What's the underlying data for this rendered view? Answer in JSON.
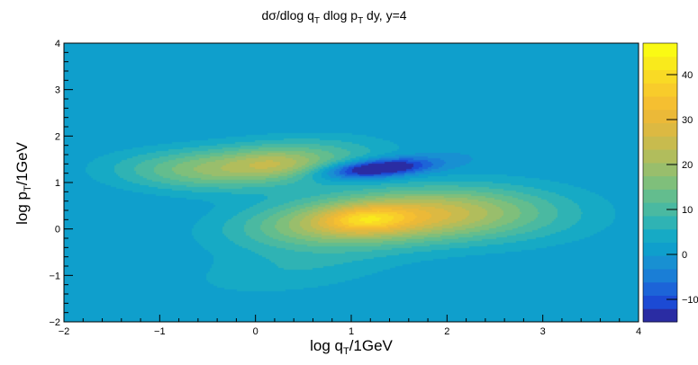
{
  "chart_data": {
    "type": "heatmap",
    "title": {
      "main": "dσ/dlog q",
      "sub1": "T",
      "mid": " dlog p",
      "sub2": "T",
      "tail": " dy,   y=4"
    },
    "xlabel": {
      "main": "log q",
      "sub": "T",
      "tail": "/1GeV"
    },
    "ylabel": {
      "main": "log p",
      "sub": "T",
      "tail": "/1GeV"
    },
    "xlim": [
      -2,
      4
    ],
    "ylim": [
      -2,
      4
    ],
    "x_ticks": [
      -2,
      -1,
      0,
      1,
      2,
      3,
      4
    ],
    "x_tick_labels": [
      "−2",
      "−1",
      "0",
      "1",
      "2",
      "3",
      "4"
    ],
    "y_ticks": [
      -2,
      -1,
      0,
      1,
      2,
      3,
      4
    ],
    "y_tick_labels": [
      "−2",
      "−1",
      "0",
      "1",
      "2",
      "3",
      "4"
    ],
    "colorbar": {
      "zmin": -15,
      "zmax": 47,
      "ticks": [
        -10,
        0,
        10,
        20,
        30,
        40
      ],
      "tick_labels": [
        "−10",
        "0",
        "10",
        "20",
        "30",
        "40"
      ],
      "levels": 20
    },
    "background_value": 0,
    "features": [
      {
        "kind": "peak",
        "x": 1.15,
        "y": 0.2,
        "value": 45
      },
      {
        "kind": "peak",
        "x": 0.2,
        "y": 1.4,
        "value": 28
      },
      {
        "kind": "trough",
        "x": 1.25,
        "y": 1.3,
        "value": -15
      }
    ],
    "palette": [
      "#2a2ca3",
      "#1c4ad4",
      "#1c64d8",
      "#1a7ed6",
      "#1890d2",
      "#0f9fcc",
      "#16aac5",
      "#2fb3b4",
      "#4ab9a1",
      "#63bd8e",
      "#7fbf7b",
      "#99be6c",
      "#b1bd5c",
      "#c8bb4e",
      "#dcb942",
      "#ebb938",
      "#f5bf31",
      "#f8cc2b",
      "#f9da25",
      "#f9ea1c",
      "#fafa14"
    ]
  }
}
